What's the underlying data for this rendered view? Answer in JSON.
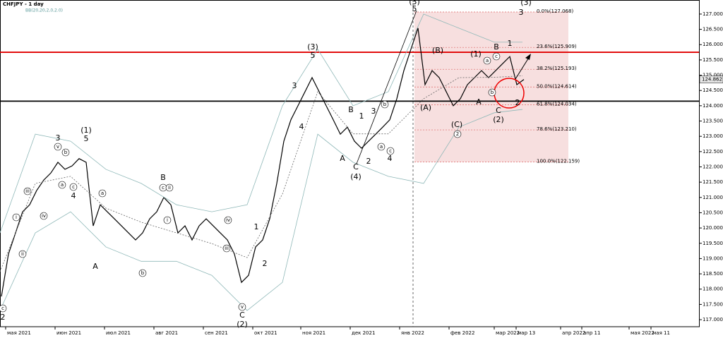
{
  "chart_data": {
    "type": "line",
    "title": "CHFJPY - 1 day",
    "indicator": "BB(20,20,2,0,2.0)",
    "series": [
      {
        "color": "#000000",
        "values": [
          117.76,
          119.15,
          119.84,
          120.53,
          120.76,
          121.23,
          121.57,
          121.8,
          122.15,
          121.92,
          122.03,
          122.27,
          122.15,
          120.07,
          120.76,
          120.53,
          120.3,
          120.07,
          119.84,
          119.61,
          119.84,
          120.3,
          120.53,
          121.0,
          120.76,
          119.84,
          120.07,
          119.61,
          120.07,
          120.3,
          120.07,
          119.84,
          119.61,
          119.15,
          118.22,
          118.45,
          119.38,
          119.61,
          120.3,
          121.46,
          122.84,
          123.54,
          124.0,
          124.46,
          124.92,
          124.46,
          124.0,
          123.54,
          123.07,
          123.3,
          122.84,
          122.61,
          122.84,
          123.07,
          123.3,
          123.54,
          124.23,
          125.15,
          125.85,
          126.54,
          124.69,
          125.15,
          124.92,
          124.46,
          124.0,
          124.23,
          124.69,
          124.92,
          125.15,
          124.92,
          125.15,
          125.38,
          125.61,
          124.69,
          124.86
        ]
      },
      {
        "color": "#8fb8b8",
        "values": [
          119.84,
          123.07,
          122.84,
          121.92,
          121.46,
          120.76,
          120.53,
          120.76,
          124.0,
          125.85,
          124.0,
          124.46,
          127.0,
          126.54,
          126.08,
          126.08
        ]
      },
      {
        "color": "#666666",
        "values": [
          118.57,
          121.46,
          121.69,
          120.65,
          120.19,
          119.84,
          119.49,
          119.03,
          121.11,
          124.46,
          123.08,
          123.08,
          124.23,
          124.92,
          124.93,
          124.98
        ]
      },
      {
        "color": "#8fb8b8",
        "values": [
          117.3,
          119.84,
          120.53,
          119.38,
          118.91,
          118.91,
          118.45,
          117.3,
          118.22,
          123.07,
          122.15,
          121.69,
          121.46,
          123.3,
          123.77,
          123.88
        ]
      }
    ],
    "ylim": [
      116.77,
      127.46
    ],
    "yticks": [
      {
        "value": 117,
        "label": "117.000"
      },
      {
        "value": 117.5,
        "label": "117.500"
      },
      {
        "value": 118,
        "label": "118.000"
      },
      {
        "value": 118.5,
        "label": "118.500"
      },
      {
        "value": 119,
        "label": "119.000"
      },
      {
        "value": 119.5,
        "label": "119.500"
      },
      {
        "value": 120,
        "label": "120.000"
      },
      {
        "value": 120.5,
        "label": "120.500"
      },
      {
        "value": 121,
        "label": "121.000"
      },
      {
        "value": 121.5,
        "label": "121.500"
      },
      {
        "value": 122,
        "label": "122.000"
      },
      {
        "value": 122.5,
        "label": "122.500"
      },
      {
        "value": 123,
        "label": "123.000"
      },
      {
        "value": 123.5,
        "label": "123.500"
      },
      {
        "value": 124,
        "label": "124.000"
      },
      {
        "value": 124.5,
        "label": "124.500"
      },
      {
        "value": 125,
        "label": "125.000"
      },
      {
        "value": 125.5,
        "label": "125.500"
      },
      {
        "value": 126,
        "label": "126.000"
      },
      {
        "value": 126.5,
        "label": "126.500"
      },
      {
        "value": 127,
        "label": "127.000"
      }
    ],
    "last_price": 124.862,
    "hlines": [
      {
        "value": 125.75,
        "color": "#e00000"
      },
      {
        "value": 124.15,
        "color": "#000000"
      }
    ],
    "fib_levels": [
      {
        "value": 127.068,
        "label": "0.0%(127.068)"
      },
      {
        "value": 125.909,
        "label": "23.6%(125.909)"
      },
      {
        "value": 125.193,
        "label": "38.2%(125.193)"
      },
      {
        "value": 124.614,
        "label": "50.0%(124.614)"
      },
      {
        "value": 124.034,
        "label": "61.8%(124.034)"
      },
      {
        "value": 123.21,
        "label": "78.6%(123.210)"
      },
      {
        "value": 122.159,
        "label": "100.0%(122.159)"
      }
    ],
    "xlabels": [
      "мая 2021",
      "июн 2021",
      "июл 2021",
      "авг 2021",
      "сен 2021",
      "окт 2021",
      "ноя 2021",
      "дек 2021",
      "янв 2022",
      "фев 2022",
      "мар 2022",
      "мар 13",
      "апр 2022",
      "апр 11",
      "мая 2022",
      "мая 11"
    ],
    "wave_labels": [
      "(3)",
      "5",
      "(3)",
      "3",
      "(1)",
      "5",
      "3",
      "4",
      "A",
      "B",
      "(3)",
      "5",
      "3",
      "4",
      "B",
      "1",
      "3",
      "A",
      "C",
      "(4)",
      "2",
      "4",
      "1",
      "2",
      "C",
      "(2)",
      "2",
      "(A)",
      "(B)",
      "(1)",
      "B",
      "1",
      "A",
      "C",
      "(2)",
      "2",
      "(C)"
    ],
    "circled_labels": [
      "c",
      "ii",
      "i",
      "iii",
      "iv",
      "v",
      "b",
      "a",
      "c",
      "a",
      "b",
      "c",
      "ii",
      "i",
      "iv",
      "iii",
      "v",
      "a",
      "c",
      "b",
      "b",
      "a",
      "c",
      "2"
    ]
  }
}
